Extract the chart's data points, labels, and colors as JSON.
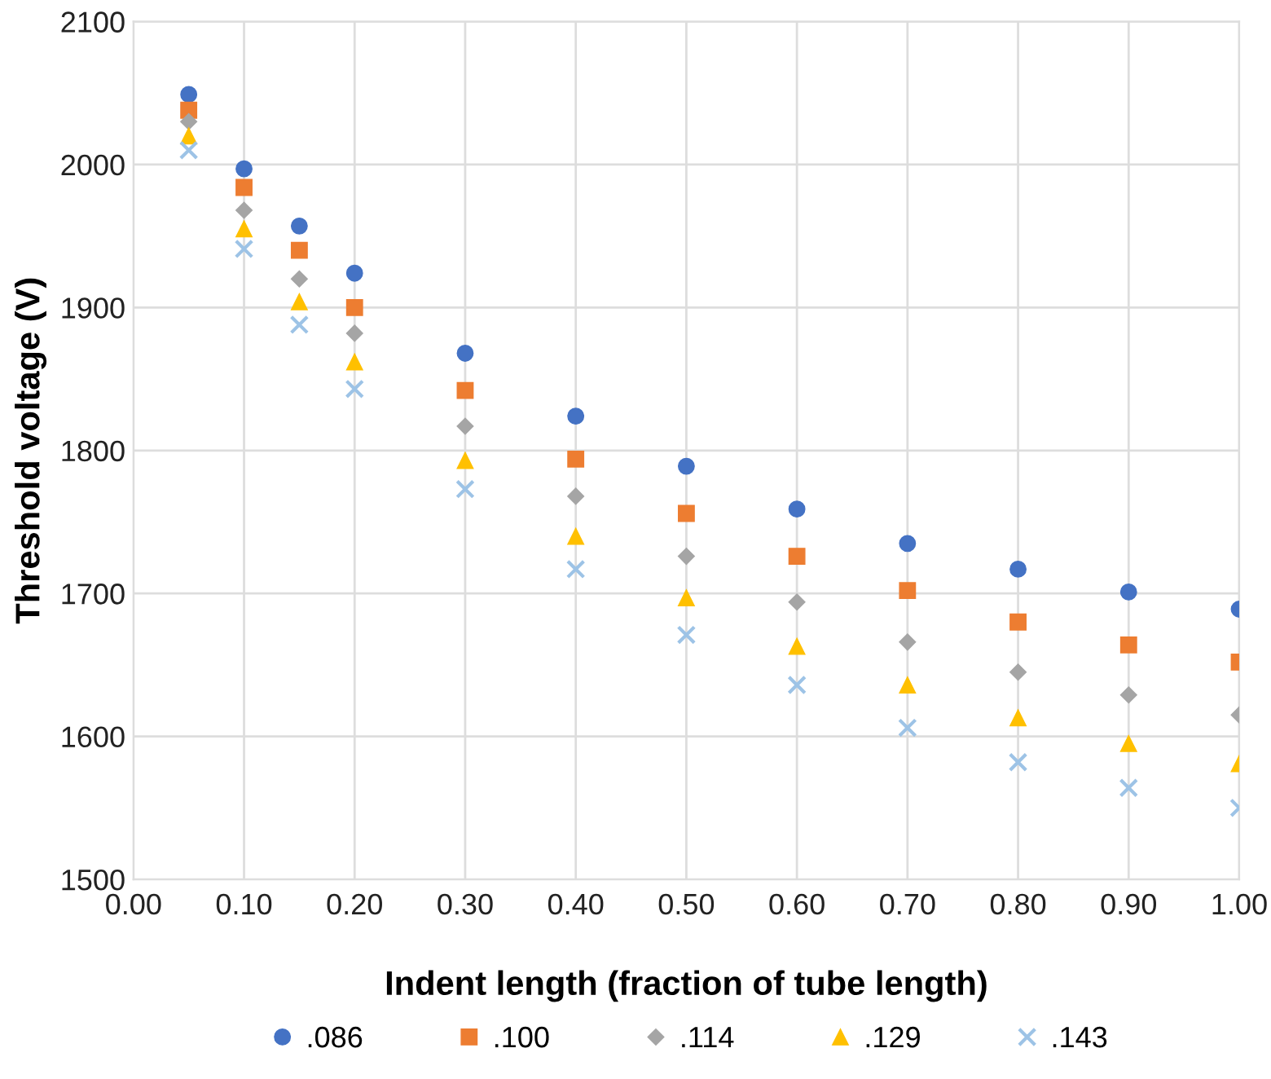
{
  "chart_data": {
    "type": "scatter",
    "xlabel": "Indent length (fraction of tube length)",
    "ylabel": "Threshold voltage (V)",
    "x": [
      0.05,
      0.1,
      0.15,
      0.2,
      0.3,
      0.4,
      0.5,
      0.6,
      0.7,
      0.8,
      0.9,
      1.0
    ],
    "series": [
      {
        "name": ".086",
        "color": "#4472c4",
        "marker": "circle",
        "values": [
          2049,
          1997,
          1957,
          1924,
          1868,
          1824,
          1789,
          1759,
          1735,
          1717,
          1701,
          1689
        ]
      },
      {
        "name": ".100",
        "color": "#ed7d31",
        "marker": "square",
        "values": [
          2038,
          1984,
          1940,
          1900,
          1842,
          1794,
          1756,
          1726,
          1702,
          1680,
          1664,
          1652
        ]
      },
      {
        "name": ".114",
        "color": "#a5a5a5",
        "marker": "diamond",
        "values": [
          2030,
          1968,
          1920,
          1882,
          1817,
          1768,
          1726,
          1694,
          1666,
          1645,
          1629,
          1615
        ]
      },
      {
        "name": ".129",
        "color": "#ffc000",
        "marker": "triangle",
        "values": [
          2020,
          1955,
          1904,
          1862,
          1793,
          1740,
          1697,
          1663,
          1636,
          1613,
          1595,
          1581
        ]
      },
      {
        "name": ".143",
        "color": "#9dc3e6",
        "marker": "cross",
        "values": [
          2010,
          1941,
          1888,
          1843,
          1773,
          1717,
          1671,
          1636,
          1606,
          1582,
          1564,
          1550
        ]
      }
    ],
    "xlim": [
      0,
      1
    ],
    "xticks": [
      {
        "value": 0,
        "label": "0.00"
      },
      {
        "value": 0.1,
        "label": "0.10"
      },
      {
        "value": 0.2,
        "label": "0.20"
      },
      {
        "value": 0.3,
        "label": "0.30"
      },
      {
        "value": 0.4,
        "label": "0.40"
      },
      {
        "value": 0.5,
        "label": "0.50"
      },
      {
        "value": 0.6,
        "label": "0.60"
      },
      {
        "value": 0.7,
        "label": "0.70"
      },
      {
        "value": 0.8,
        "label": "0.80"
      },
      {
        "value": 0.9,
        "label": "0.90"
      },
      {
        "value": 1.0,
        "label": "1.00"
      }
    ],
    "ylim": [
      1500,
      2100
    ],
    "yticks": [
      1500,
      1600,
      1700,
      1800,
      1900,
      2000,
      2100
    ],
    "grid": true,
    "legend": "bottom"
  }
}
